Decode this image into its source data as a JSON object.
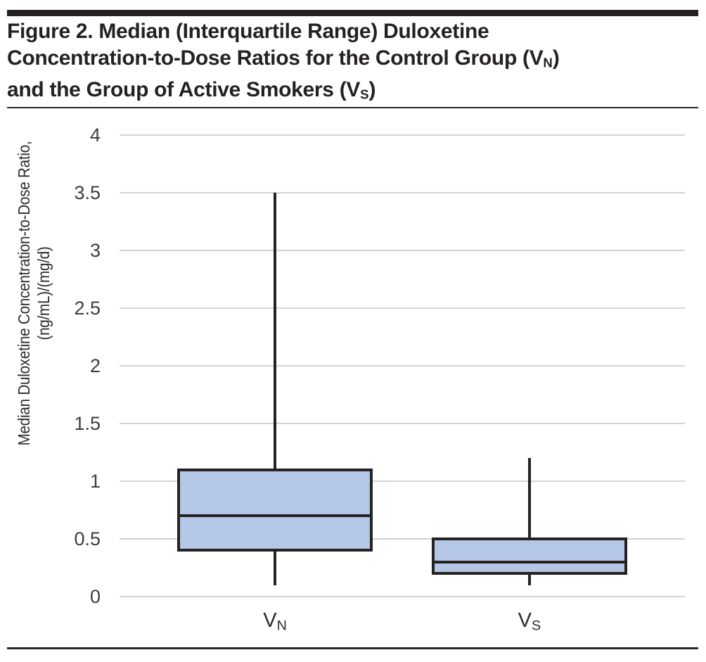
{
  "header": {
    "title_lines": [
      [
        {
          "text": "Figure 2. Median (Interquartile Range) Duloxetine"
        }
      ],
      [
        {
          "text": "Concentration-to-Dose Ratios for the Control Group (V"
        },
        {
          "text": "N",
          "sub": true
        },
        {
          "text": ")"
        }
      ],
      [
        {
          "text": "and the Group of Active Smokers (V"
        },
        {
          "text": "S",
          "sub": true
        },
        {
          "text": ")"
        }
      ]
    ]
  },
  "chart_data": {
    "type": "boxplot",
    "title": "Figure 2. Median (Interquartile Range) Duloxetine Concentration-to-Dose Ratios for the Control Group (VN) and the Group of Active Smokers (VS)",
    "ylabel": "Median Duloxetine Concentration-to-Dose Ratio, (ng/mL)/(mg/d)",
    "ylabel_lines": [
      "Median Duloxetine Concentration-to-Dose Ratio,",
      "(ng/mL)/(mg/d)"
    ],
    "xlabel": "",
    "ylim": [
      0,
      4
    ],
    "yticks": [
      0,
      0.5,
      1,
      1.5,
      2,
      2.5,
      3,
      3.5,
      4
    ],
    "ytick_labels": [
      "0",
      "0.5",
      "1",
      "1.5",
      "2",
      "2.5",
      "3",
      "3.5",
      "4"
    ],
    "grid": true,
    "legend": "none",
    "categories": [
      {
        "base": "V",
        "sub": "N"
      },
      {
        "base": "V",
        "sub": "S"
      }
    ],
    "series": [
      {
        "name": "VN (control group)",
        "whisker_low": 0.1,
        "q1": 0.4,
        "median": 0.7,
        "q3": 1.1,
        "whisker_high": 3.5
      },
      {
        "name": "VS (active smokers)",
        "whisker_low": 0.1,
        "q1": 0.2,
        "median": 0.3,
        "q3": 0.5,
        "whisker_high": 1.2
      }
    ],
    "layout": {
      "centers_frac": [
        0.275,
        0.725
      ],
      "box_width_frac": 0.345
    },
    "colors": {
      "box_fill": "#b4c7e7",
      "line": "#262223",
      "gridline": "#d3d3d3",
      "tick_text": "#3d3d3d"
    }
  }
}
